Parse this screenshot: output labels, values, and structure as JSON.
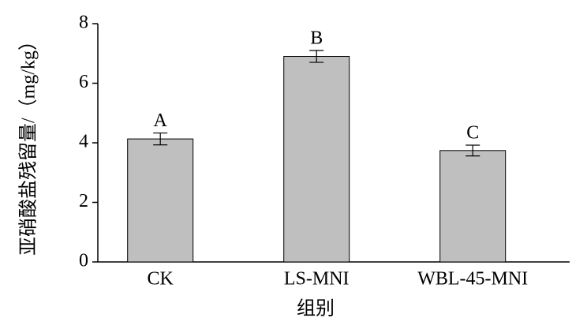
{
  "chart_data": {
    "type": "bar",
    "categories": [
      "CK",
      "LS-MNI",
      "WBL-45-MNI"
    ],
    "values": [
      4.13,
      6.9,
      3.74
    ],
    "errors": [
      0.2,
      0.2,
      0.18
    ],
    "labels": [
      "A",
      "B",
      "C"
    ],
    "color": "#bfbfbf",
    "xlabel": "组别",
    "ylabel": "亚硝酸盐残留量/（mg/kg）",
    "ylim": [
      0,
      8
    ],
    "yticks": [
      0,
      2,
      4,
      6,
      8
    ]
  }
}
